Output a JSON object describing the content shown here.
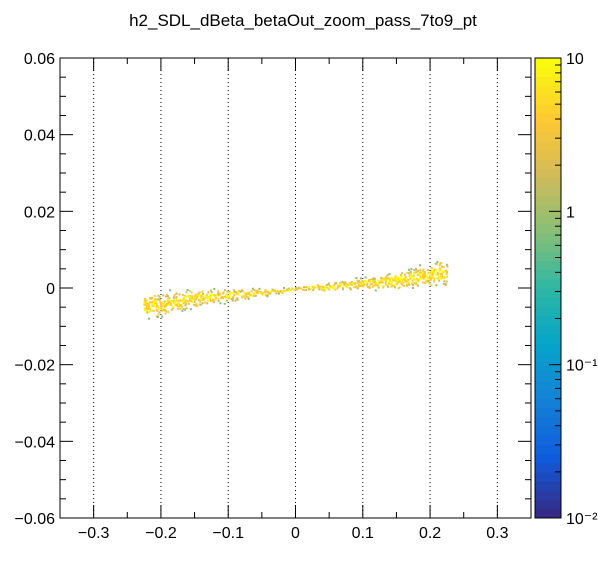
{
  "chart_data": {
    "type": "heatmap",
    "title": "h2_SDL_dBeta_betaOut_zoom_pass_7to9_pt",
    "xlabel": "",
    "ylabel": "",
    "xlim": [
      -0.35,
      0.35
    ],
    "ylim": [
      -0.06,
      0.06
    ],
    "x_ticks": [
      -0.3,
      -0.2,
      -0.1,
      0,
      0.1,
      0.2,
      0.3
    ],
    "x_tick_labels": [
      "−0.3",
      "−0.2",
      "−0.1",
      "0",
      "0.1",
      "0.2",
      "0.3"
    ],
    "y_ticks": [
      -0.06,
      -0.04,
      -0.02,
      0,
      0.02,
      0.04,
      0.06
    ],
    "y_tick_labels": [
      "−0.06",
      "−0.04",
      "−0.02",
      "0",
      "0.02",
      "0.04",
      "0.06"
    ],
    "x_grid": true,
    "y_grid": false,
    "colorbar": {
      "scale": "log",
      "range": [
        0.01,
        10
      ],
      "tick_labels": [
        "10",
        "1",
        "10⁻¹",
        "10⁻²"
      ],
      "colors": [
        "#352a87",
        "#0f5cdd",
        "#1481d6",
        "#06a4ca",
        "#2eb7a4",
        "#87bf77",
        "#d1bb59",
        "#fec832",
        "#f9fb0e"
      ]
    },
    "distribution": {
      "description_points": [
        {
          "x": -0.21,
          "y": -0.0045
        },
        {
          "x": -0.15,
          "y": -0.0025
        },
        {
          "x": -0.05,
          "y": -0.001
        },
        {
          "x": 0.0,
          "y": 0.0
        },
        {
          "x": 0.05,
          "y": 0.0005
        },
        {
          "x": 0.15,
          "y": 0.002
        },
        {
          "x": 0.21,
          "y": 0.004
        }
      ],
      "x_extent": [
        -0.225,
        0.225
      ]
    }
  }
}
